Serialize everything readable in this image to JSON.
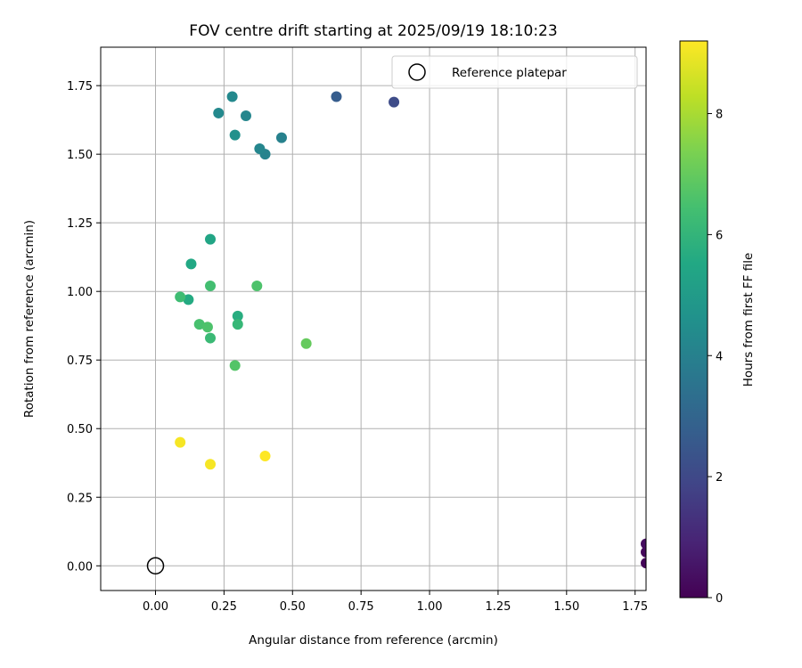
{
  "chart_data": {
    "type": "scatter",
    "title": "FOV centre drift starting at 2025/09/19 18:10:23",
    "xlabel": "Angular distance from reference (arcmin)",
    "ylabel": "Rotation from reference (arcmin)",
    "xlim": [
      -0.2,
      1.79
    ],
    "ylim": [
      -0.09,
      1.89
    ],
    "xticks": [
      "0.00",
      "0.25",
      "0.50",
      "0.75",
      "1.00",
      "1.25",
      "1.50",
      "1.75"
    ],
    "yticks": [
      "0.00",
      "0.25",
      "0.50",
      "0.75",
      "1.00",
      "1.25",
      "1.50",
      "1.75"
    ],
    "grid": true,
    "legend": {
      "position": "top-right",
      "entries": [
        "Reference platepar"
      ]
    },
    "reference_point": {
      "x": 0.0,
      "y": 0.0,
      "label": "Reference platepar"
    },
    "colorbar": {
      "label": "Hours from first FF file",
      "min": 0,
      "max": 9.2,
      "ticks": [
        "0",
        "2",
        "4",
        "6",
        "8"
      ],
      "colormap": "viridis"
    },
    "points": [
      {
        "x": 1.79,
        "y": 0.01,
        "c": 0.1
      },
      {
        "x": 1.79,
        "y": 0.05,
        "c": 0.2
      },
      {
        "x": 1.79,
        "y": 0.08,
        "c": 0.3
      },
      {
        "x": 0.87,
        "y": 1.69,
        "c": 2.1
      },
      {
        "x": 0.66,
        "y": 1.71,
        "c": 2.7
      },
      {
        "x": 0.46,
        "y": 1.56,
        "c": 4.0
      },
      {
        "x": 0.4,
        "y": 1.5,
        "c": 4.1
      },
      {
        "x": 0.38,
        "y": 1.52,
        "c": 4.2
      },
      {
        "x": 0.33,
        "y": 1.64,
        "c": 4.2
      },
      {
        "x": 0.28,
        "y": 1.71,
        "c": 4.3
      },
      {
        "x": 0.23,
        "y": 1.65,
        "c": 4.3
      },
      {
        "x": 0.29,
        "y": 1.57,
        "c": 4.6
      },
      {
        "x": 0.2,
        "y": 1.19,
        "c": 5.4
      },
      {
        "x": 0.13,
        "y": 1.1,
        "c": 5.5
      },
      {
        "x": 0.12,
        "y": 0.97,
        "c": 5.6
      },
      {
        "x": 0.3,
        "y": 0.91,
        "c": 5.7
      },
      {
        "x": 0.3,
        "y": 0.88,
        "c": 6.1
      },
      {
        "x": 0.2,
        "y": 0.83,
        "c": 6.2
      },
      {
        "x": 0.09,
        "y": 0.98,
        "c": 6.3
      },
      {
        "x": 0.2,
        "y": 1.02,
        "c": 6.4
      },
      {
        "x": 0.16,
        "y": 0.88,
        "c": 6.5
      },
      {
        "x": 0.19,
        "y": 0.87,
        "c": 6.6
      },
      {
        "x": 0.37,
        "y": 1.02,
        "c": 6.6
      },
      {
        "x": 0.29,
        "y": 0.73,
        "c": 6.7
      },
      {
        "x": 0.55,
        "y": 0.81,
        "c": 7.0
      },
      {
        "x": 0.09,
        "y": 0.45,
        "c": 9.1
      },
      {
        "x": 0.2,
        "y": 0.37,
        "c": 9.1
      },
      {
        "x": 0.4,
        "y": 0.4,
        "c": 9.2
      }
    ]
  }
}
